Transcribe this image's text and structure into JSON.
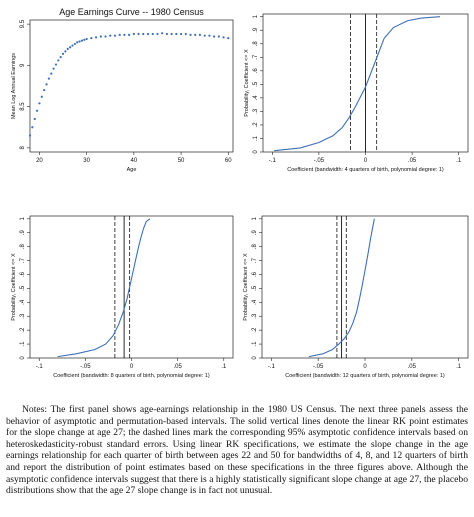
{
  "chart_data": [
    {
      "type": "scatter",
      "title": "Age Earnings Curve -- 1980 Census",
      "xlabel": "Age",
      "ylabel": "Mean Log Annual Earnings",
      "xlim": [
        18,
        61
      ],
      "ylim": [
        7.95,
        9.55
      ],
      "xticks": [
        "20",
        "30",
        "40",
        "50",
        "60"
      ],
      "yticks": [
        "8",
        "8.5",
        "9",
        "9.5"
      ],
      "x": [
        18.0,
        18.5,
        19.0,
        19.5,
        20.0,
        20.5,
        21.0,
        21.5,
        22.0,
        22.5,
        23.0,
        23.5,
        24.0,
        24.5,
        25.0,
        25.5,
        26.0,
        26.5,
        27.0,
        27.5,
        28.0,
        28.5,
        29.0,
        29.5,
        30.0,
        31.0,
        32.0,
        33.0,
        34.0,
        35.0,
        36.0,
        37.0,
        38.0,
        39.0,
        40.0,
        41.0,
        42.0,
        43.0,
        44.0,
        45.0,
        46.0,
        47.0,
        48.0,
        49.0,
        50.0,
        51.0,
        52.0,
        53.0,
        54.0,
        55.0,
        56.0,
        57.0,
        58.0,
        59.0,
        60.0
      ],
      "y": [
        8.15,
        8.25,
        8.35,
        8.45,
        8.54,
        8.62,
        8.7,
        8.77,
        8.84,
        8.9,
        8.96,
        9.01,
        9.06,
        9.1,
        9.14,
        9.17,
        9.2,
        9.22,
        9.24,
        9.26,
        9.28,
        9.29,
        9.3,
        9.31,
        9.32,
        9.33,
        9.34,
        9.35,
        9.35,
        9.36,
        9.36,
        9.37,
        9.37,
        9.37,
        9.38,
        9.38,
        9.38,
        9.38,
        9.38,
        9.38,
        9.39,
        9.38,
        9.38,
        9.38,
        9.38,
        9.38,
        9.37,
        9.37,
        9.37,
        9.36,
        9.36,
        9.35,
        9.35,
        9.34,
        9.33
      ]
    },
    {
      "type": "line",
      "xlabel": "Coefficient (bandwidth: 4 quarters of birth, polynomial degree: 1)",
      "ylabel": "Probability, Coefficient <= X",
      "xlim": [
        -0.11,
        0.11
      ],
      "ylim": [
        0,
        1.02
      ],
      "xticks": [
        "-.1",
        "-.05",
        "0",
        ".05",
        ".1"
      ],
      "yticks": [
        "0",
        ".1",
        ".2",
        ".3",
        ".4",
        ".5",
        ".6",
        ".7",
        ".8",
        ".9",
        "1"
      ],
      "x": [
        -0.098,
        -0.07,
        -0.05,
        -0.035,
        -0.025,
        -0.018,
        -0.012,
        -0.006,
        0.0,
        0.005,
        0.01,
        0.015,
        0.02,
        0.03,
        0.045,
        0.06,
        0.08
      ],
      "y": [
        0.01,
        0.03,
        0.07,
        0.12,
        0.18,
        0.25,
        0.32,
        0.4,
        0.48,
        0.57,
        0.66,
        0.75,
        0.84,
        0.92,
        0.97,
        0.99,
        1.0
      ],
      "solid_line": 0.0,
      "dashed_lines": [
        -0.016,
        0.012
      ]
    },
    {
      "type": "line",
      "xlabel": "Coefficient (bandwidth: 8 quarters of birth, polynomial degree: 1)",
      "ylabel": "Probability, Coefficient <= X",
      "xlim": [
        -0.11,
        0.11
      ],
      "ylim": [
        0,
        1.02
      ],
      "xticks": [
        "-.1",
        "-.05",
        "0",
        ".05",
        ".1"
      ],
      "yticks": [
        "0",
        ".1",
        ".2",
        ".3",
        ".4",
        ".5",
        ".6",
        ".7",
        ".8",
        ".9",
        "1"
      ],
      "x": [
        -0.08,
        -0.06,
        -0.04,
        -0.028,
        -0.02,
        -0.014,
        -0.009,
        -0.005,
        -0.002,
        0.001,
        0.004,
        0.007,
        0.01,
        0.013,
        0.016,
        0.02
      ],
      "y": [
        0.01,
        0.03,
        0.06,
        0.1,
        0.16,
        0.24,
        0.33,
        0.42,
        0.51,
        0.6,
        0.69,
        0.78,
        0.86,
        0.93,
        0.98,
        1.0
      ],
      "solid_line": -0.008,
      "dashed_lines": [
        -0.018,
        -0.002
      ]
    },
    {
      "type": "line",
      "xlabel": "Coefficient (bandwidth: 12 quarters of birth, polynomial degree: 1)",
      "ylabel": "Probability, Coefficient <= X",
      "xlim": [
        -0.11,
        0.11
      ],
      "ylim": [
        0,
        1.02
      ],
      "xticks": [
        "-.1",
        "-.05",
        "0",
        ".05",
        ".1"
      ],
      "yticks": [
        "0",
        ".1",
        ".2",
        ".3",
        ".4",
        ".5",
        ".6",
        ".7",
        ".8",
        ".9",
        "1"
      ],
      "x": [
        -0.06,
        -0.045,
        -0.035,
        -0.028,
        -0.022,
        -0.017,
        -0.013,
        -0.009,
        -0.006,
        -0.003,
        0.0,
        0.003,
        0.006,
        0.01
      ],
      "y": [
        0.01,
        0.03,
        0.06,
        0.1,
        0.14,
        0.19,
        0.25,
        0.33,
        0.42,
        0.52,
        0.63,
        0.74,
        0.86,
        1.0
      ],
      "solid_line": -0.025,
      "dashed_lines": [
        -0.03,
        -0.02
      ]
    }
  ],
  "notes": "Notes: The first panel shows age-earnings relationship in the 1980 US Census. The next three panels assess the behavior of asymptotic and permutation-based intervals. The solid vertical lines denote the linear RK point estimates for the slope change at age 27; the dashed lines mark the corresponding 95% asymptotic confidence intervals based on heteroskedasticity-robust standard errors. Using linear RK specifications, we estimate the slope change in the age earnings relationship for each quarter of birth between ages 22 and 50 for bandwidths of 4, 8, and 12 quarters of birth and report the distribution of point estimates based on these specifications in the three figures above. Although the asymptotic confidence intervals suggest that there is a highly statistically significant slope change at age 27, the placebo distributions show that the age 27 slope change is in fact not unusual.",
  "colors": {
    "series": "#3f6fb5",
    "axis": "#222222"
  }
}
